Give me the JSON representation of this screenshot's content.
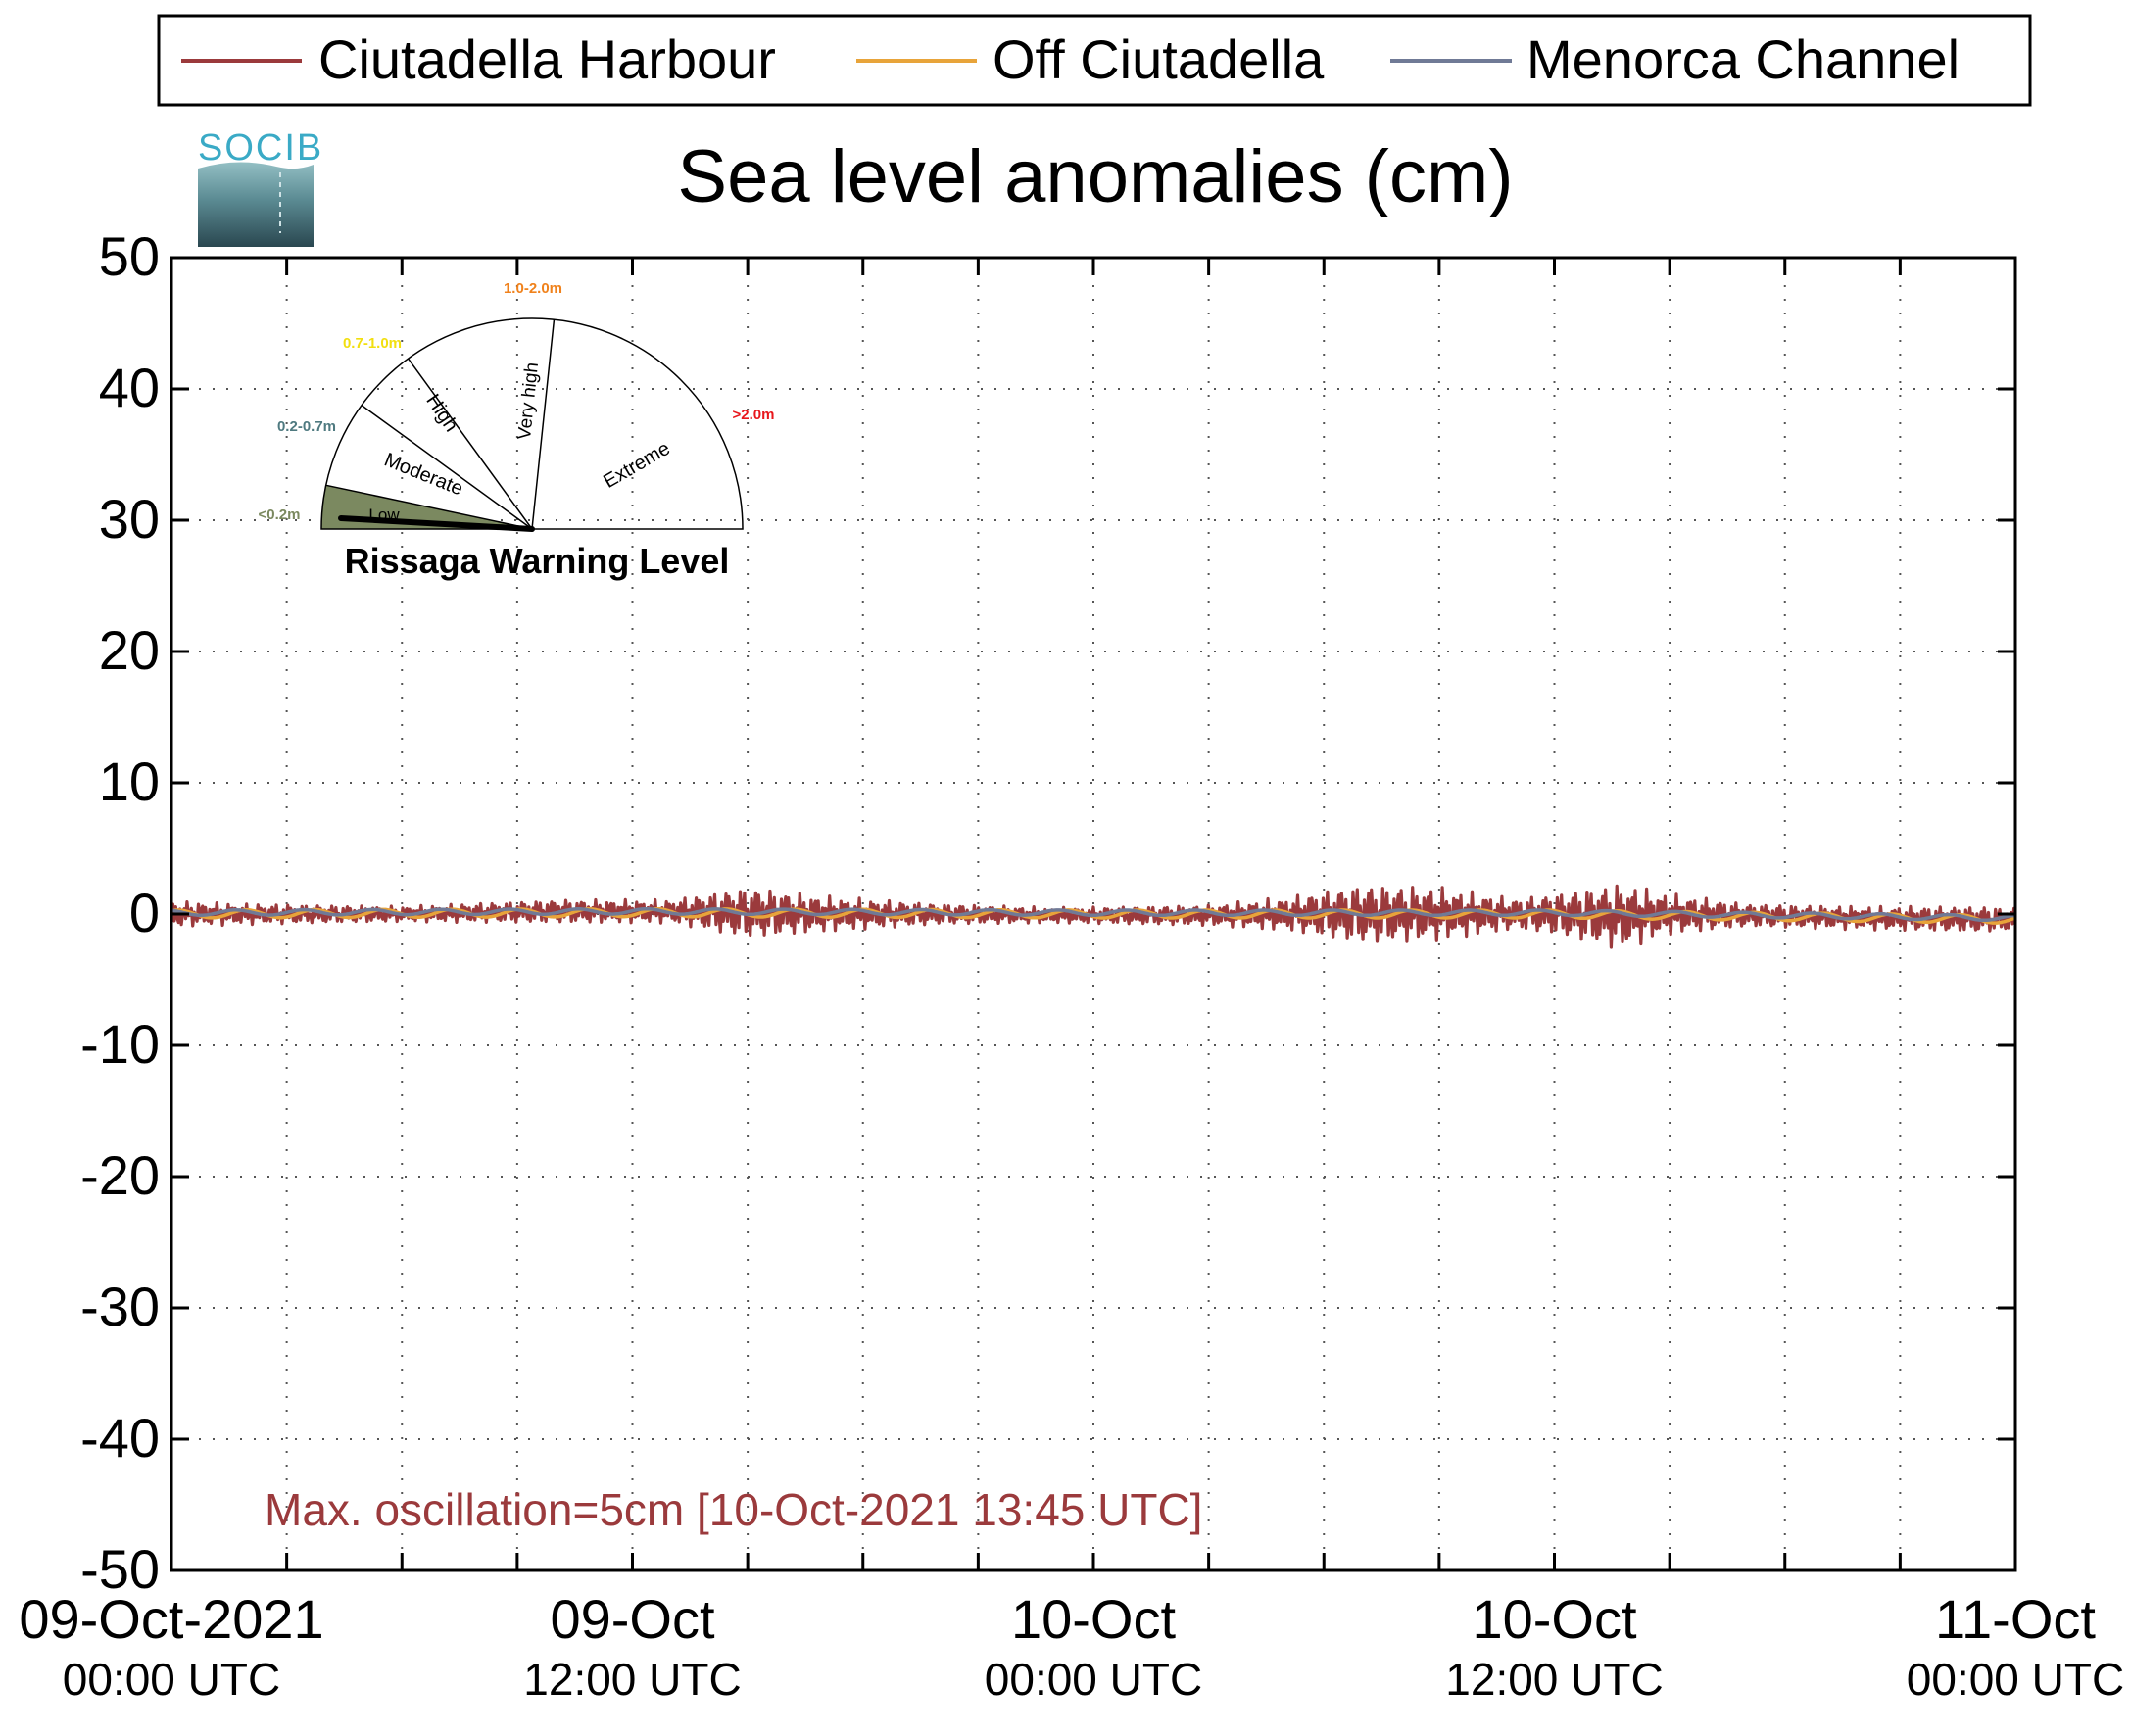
{
  "chart_data": {
    "type": "line",
    "title": "Sea level anomalies (cm)",
    "xlabel": "",
    "ylabel": "",
    "ylim": [
      -50,
      50
    ],
    "yticks": [
      -50,
      -40,
      -30,
      -20,
      -10,
      0,
      10,
      20,
      30,
      40,
      50
    ],
    "xlim": [
      "2021-10-09 00:00",
      "2021-10-11 00:00"
    ],
    "xtick_labels": [
      {
        "x": "2021-10-09 00:00",
        "line1": "09-Oct-2021",
        "line2": "00:00 UTC"
      },
      {
        "x": "2021-10-09 12:00",
        "line1": "09-Oct",
        "line2": "12:00 UTC"
      },
      {
        "x": "2021-10-10 00:00",
        "line1": "10-Oct",
        "line2": "00:00 UTC"
      },
      {
        "x": "2021-10-10 12:00",
        "line1": "10-Oct",
        "line2": "12:00 UTC"
      },
      {
        "x": "2021-10-11 00:00",
        "line1": "11-Oct",
        "line2": "00:00 UTC"
      }
    ],
    "minor_xticks": [
      "03:00",
      "06:00",
      "09:00",
      "15:00",
      "18:00",
      "21:00"
    ],
    "grid": true,
    "legend_position": "top",
    "series": [
      {
        "name": "Ciutadella Harbour",
        "color": "#9b3a3c",
        "envelope": {
          "x": [
            "2021-10-09 00:00",
            "2021-10-09 02:00",
            "2021-10-09 06:00",
            "2021-10-09 10:00",
            "2021-10-09 13:00",
            "2021-10-09 15:00",
            "2021-10-09 17:00",
            "2021-10-09 20:00",
            "2021-10-09 23:00",
            "2021-10-10 03:00",
            "2021-10-10 05:00",
            "2021-10-10 07:00",
            "2021-10-10 09:00",
            "2021-10-10 11:00",
            "2021-10-10 12:00",
            "2021-10-10 13:45",
            "2021-10-10 15:00",
            "2021-10-10 17:00",
            "2021-10-10 20:00",
            "2021-10-10 23:00",
            "2021-10-11 00:00"
          ],
          "mean": [
            0,
            0,
            0,
            0.2,
            0.2,
            0.1,
            0,
            0,
            -0.1,
            -0.1,
            0,
            0,
            0,
            0,
            0,
            -0.2,
            0,
            -0.1,
            -0.3,
            -0.4,
            -0.4
          ],
          "amplitude": [
            1.0,
            0.8,
            0.6,
            0.9,
            0.9,
            2.0,
            1.4,
            0.8,
            0.6,
            0.8,
            1.3,
            2.3,
            2.1,
            1.2,
            1.6,
            2.6,
            1.6,
            0.9,
            0.9,
            1.0,
            0.9
          ]
        }
      },
      {
        "name": "Off Ciutadella",
        "color": "#e8a43a",
        "envelope": {
          "x": [
            "2021-10-09 00:00",
            "2021-10-09 12:00",
            "2021-10-10 00:00",
            "2021-10-10 12:00",
            "2021-10-11 00:00"
          ],
          "mean": [
            0,
            0.1,
            0,
            0,
            -0.4
          ],
          "amplitude": [
            0.3,
            0.3,
            0.3,
            0.3,
            0.3
          ]
        }
      },
      {
        "name": "Menorca Channel",
        "color": "#707a96",
        "envelope": {
          "x": [
            "2021-10-09 00:00",
            "2021-10-09 12:00",
            "2021-10-10 00:00",
            "2021-10-10 12:00",
            "2021-10-11 00:00"
          ],
          "mean": [
            0.1,
            0.2,
            0.1,
            0.1,
            -0.3
          ],
          "amplitude": [
            0.2,
            0.2,
            0.2,
            0.2,
            0.2
          ]
        }
      }
    ],
    "annotation": "Max. oscillation=5cm [10-Oct-2021 13:45 UTC]",
    "annotation_color": "#9b3a3c",
    "logo_text": "SOCIB",
    "gauge": {
      "title": "Rissaga Warning Level",
      "current_level": "Low",
      "levels": [
        {
          "name": "Low",
          "range": "<0.2m",
          "color": "#7b8960"
        },
        {
          "name": "Moderate",
          "range": "0.2-0.7m",
          "color": "#4f7a80"
        },
        {
          "name": "High",
          "range": "0.7-1.0m",
          "color": "#f2df10"
        },
        {
          "name": "Very high",
          "range": "1.0-2.0m",
          "color": "#f0821c"
        },
        {
          "name": "Extreme",
          "range": ">2.0m",
          "color": "#e8171c"
        }
      ]
    }
  }
}
